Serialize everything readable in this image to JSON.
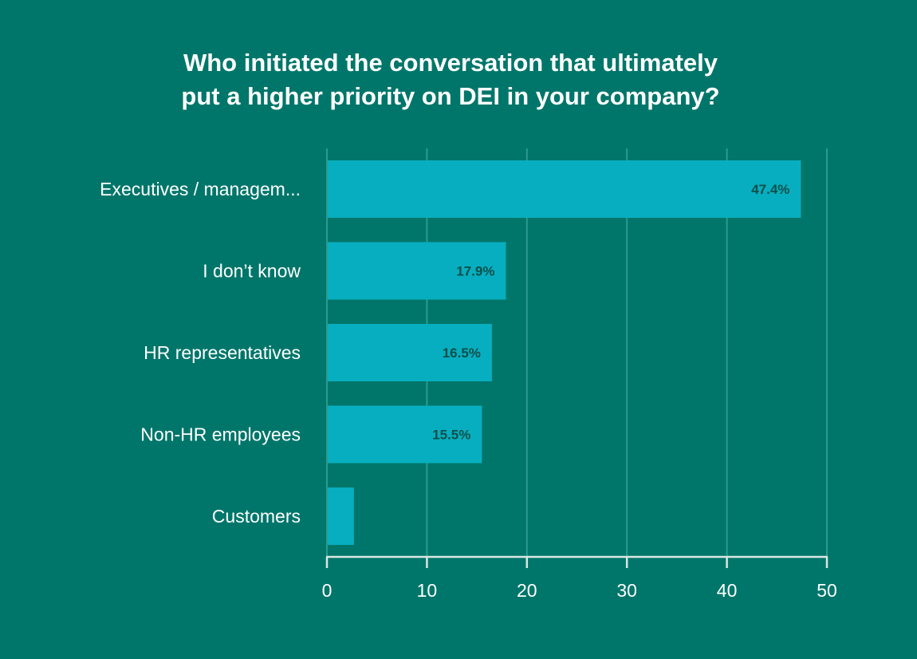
{
  "colors": {
    "background": "#00766a",
    "bar": "#07aebf",
    "grid": "#2a9a8e",
    "axis": "#d9e6e3",
    "label_text": "#ffffff",
    "value_text": "#0b4f4a"
  },
  "chart_data": {
    "type": "bar",
    "orientation": "horizontal",
    "title_lines": [
      "Who initiated the conversation that ultimately",
      "put a higher priority on DEI in your company?"
    ],
    "categories": [
      "Executives / managem...",
      "I don’t know",
      "HR representatives",
      "Non-HR employees",
      "Customers"
    ],
    "values": [
      47.4,
      17.9,
      16.5,
      15.5,
      2.7
    ],
    "value_labels": [
      "47.4%",
      "17.9%",
      "16.5%",
      "15.5%",
      ""
    ],
    "xlim": [
      0,
      50
    ],
    "xticks": [
      0,
      10,
      20,
      30,
      40,
      50
    ],
    "xtick_labels": [
      "0",
      "10",
      "20",
      "30",
      "40",
      "50"
    ],
    "grid": true,
    "legend": "none"
  }
}
